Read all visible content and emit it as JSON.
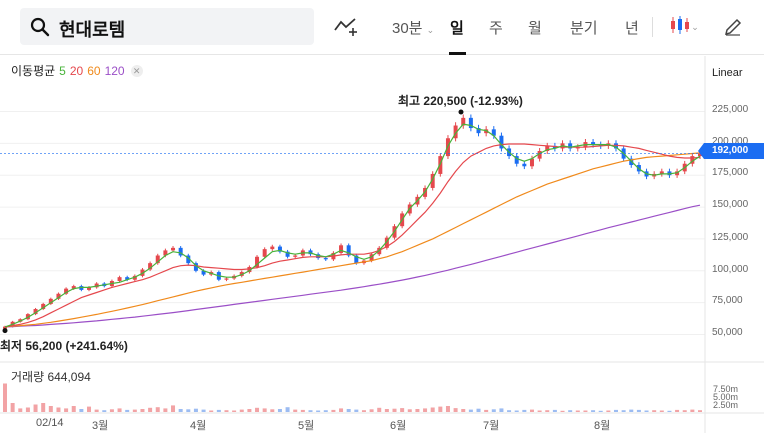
{
  "search": {
    "query": "현대로템"
  },
  "toolbar": {
    "timeframes": [
      "30분",
      "일",
      "주",
      "월",
      "분기",
      "년"
    ],
    "active_timeframe": "일",
    "icons": [
      "search-icon",
      "indicator-add-icon",
      "candle-type-icon",
      "pencil-icon"
    ]
  },
  "legend": {
    "title": "이동평균",
    "periods": [
      {
        "label": "5",
        "color": "#47b33a"
      },
      {
        "label": "20",
        "color": "#e5484d"
      },
      {
        "label": "60",
        "color": "#f08a1c"
      },
      {
        "label": "120",
        "color": "#9b4fc7"
      }
    ]
  },
  "scale_mode": "Linear",
  "current_price": "192,000",
  "annotations": {
    "high": "최고 220,500 (-12.93%)",
    "low": "최저 56,200 (+241.64%)"
  },
  "volume": {
    "title": "거래량 644,094",
    "ticks": [
      "7.50m",
      "5.00m",
      "2.50m"
    ]
  },
  "chart_data": {
    "type": "candlestick",
    "y_ticks": [
      "225,000",
      "200,000",
      "175,000",
      "150,000",
      "125,000",
      "100,000",
      "75,000",
      "50,000"
    ],
    "y_range": [
      30000,
      245000
    ],
    "x_labels": [
      "02/14",
      "3월",
      "4월",
      "5월",
      "6월",
      "7월",
      "8월"
    ],
    "up_color": "#e5484d",
    "down_color": "#1b6df2",
    "closes": [
      56200,
      60000,
      62000,
      66000,
      70000,
      74000,
      78000,
      82000,
      86000,
      88000,
      85000,
      87000,
      90000,
      88000,
      92000,
      95000,
      93000,
      96000,
      101000,
      106000,
      112000,
      116000,
      118000,
      112000,
      106000,
      100000,
      97000,
      99000,
      93000,
      94000,
      96000,
      99000,
      103000,
      111000,
      117000,
      119000,
      115000,
      111000,
      112000,
      116000,
      113000,
      110000,
      109000,
      114000,
      120000,
      112000,
      106000,
      108000,
      113000,
      118000,
      126000,
      135000,
      145000,
      152000,
      158000,
      165000,
      176000,
      190000,
      204000,
      214000,
      220000,
      212000,
      208000,
      211000,
      206000,
      196000,
      190000,
      184000,
      182000,
      188000,
      194000,
      198000,
      196000,
      200000,
      196000,
      197000,
      201000,
      199000,
      198000,
      200000,
      196000,
      188000,
      183000,
      178000,
      174000,
      176000,
      178000,
      175000,
      178000,
      184000,
      190000,
      192000
    ],
    "ma5": [
      56000,
      58000,
      60500,
      63500,
      67000,
      71000,
      75000,
      79000,
      83000,
      86000,
      87000,
      87000,
      88000,
      89000,
      90000,
      91000,
      93000,
      95000,
      98000,
      102000,
      107000,
      112000,
      115000,
      114000,
      110000,
      104000,
      100000,
      98000,
      96000,
      95000,
      95000,
      97000,
      100000,
      105000,
      110000,
      115000,
      116000,
      114000,
      113000,
      114000,
      114000,
      112000,
      111000,
      113000,
      116000,
      114000,
      111000,
      109000,
      111000,
      116000,
      123000,
      131000,
      140000,
      149000,
      155000,
      162000,
      172000,
      184000,
      198000,
      208000,
      215000,
      214000,
      211000,
      210000,
      206000,
      199000,
      193000,
      188000,
      186000,
      188000,
      192000,
      195000,
      196000,
      198000,
      197000,
      198000,
      199000,
      199000,
      199000,
      199000,
      197000,
      192000,
      186000,
      180000,
      176000,
      175000,
      176000,
      176000,
      177000,
      181000,
      186000,
      190000
    ],
    "ma20": [
      56000,
      57000,
      58000,
      59500,
      61500,
      64000,
      67000,
      70000,
      73000,
      76000,
      79000,
      81000,
      83000,
      85000,
      87000,
      88500,
      90000,
      91500,
      93000,
      95000,
      97500,
      100000,
      102500,
      104000,
      104500,
      104000,
      103000,
      102500,
      102000,
      101500,
      101000,
      101000,
      101500,
      102500,
      104000,
      106000,
      107500,
      108500,
      109500,
      110500,
      111000,
      111000,
      111000,
      111500,
      112500,
      113000,
      113000,
      113000,
      114000,
      116000,
      119000,
      123000,
      128000,
      134000,
      140000,
      146000,
      153000,
      161000,
      170000,
      178000,
      185000,
      190000,
      193000,
      196000,
      198000,
      199000,
      199500,
      199500,
      199500,
      199000,
      198500,
      198000,
      197500,
      197000,
      197000,
      197000,
      197000,
      197500,
      198000,
      198500,
      198500,
      198000,
      197000,
      196000,
      194500,
      193000,
      191500,
      190000,
      189000,
      188500,
      188500,
      189000
    ],
    "ma60": [
      56000,
      56500,
      57000,
      57500,
      58000,
      58800,
      59600,
      60500,
      61500,
      62500,
      63600,
      64700,
      65800,
      67000,
      68200,
      69500,
      70800,
      72100,
      73500,
      75000,
      76500,
      78000,
      79500,
      81000,
      82500,
      84000,
      85300,
      86600,
      87800,
      89000,
      90000,
      91000,
      92000,
      93000,
      94000,
      95000,
      96000,
      97000,
      98000,
      99000,
      100000,
      101000,
      102000,
      103000,
      104000,
      105000,
      106000,
      107000,
      108000,
      109500,
      111000,
      113000,
      115000,
      117500,
      120000,
      122500,
      125000,
      128000,
      131000,
      134000,
      137000,
      140000,
      143000,
      146000,
      149000,
      152000,
      155000,
      158000,
      160500,
      163000,
      165500,
      168000,
      170000,
      172000,
      174000,
      176000,
      178000,
      180000,
      181500,
      183000,
      184500,
      186000,
      187000,
      188000,
      189000,
      189500,
      190000,
      190500,
      191000,
      191500,
      192000,
      192500
    ],
    "ma120": [
      56000,
      56200,
      56500,
      56800,
      57100,
      57500,
      57900,
      58300,
      58700,
      59200,
      59700,
      60200,
      60700,
      61300,
      61900,
      62500,
      63100,
      63700,
      64400,
      65100,
      65800,
      66500,
      67200,
      68000,
      68800,
      69600,
      70400,
      71200,
      72000,
      72800,
      73600,
      74400,
      75200,
      76000,
      76800,
      77600,
      78400,
      79200,
      80000,
      80800,
      81600,
      82400,
      83200,
      84000,
      84800,
      85700,
      86600,
      87500,
      88500,
      89500,
      90500,
      91600,
      92700,
      93900,
      95100,
      96400,
      97700,
      99100,
      100500,
      102000,
      103500,
      105000,
      106600,
      108200,
      109800,
      111400,
      113000,
      114600,
      116200,
      117800,
      119400,
      121000,
      122600,
      124200,
      125800,
      127400,
      129000,
      130600,
      132200,
      133800,
      135300,
      136800,
      138300,
      139800,
      141300,
      142800,
      144300,
      145800,
      147300,
      148800,
      150300,
      151500
    ],
    "volumes": [
      9.5,
      3.0,
      1.2,
      1.5,
      2.5,
      3.0,
      2.0,
      1.5,
      1.2,
      2.0,
      1.0,
      1.8,
      0.8,
      0.6,
      0.9,
      1.2,
      0.7,
      0.8,
      1.0,
      1.4,
      1.6,
      1.2,
      2.2,
      1.0,
      0.9,
      1.1,
      0.8,
      0.5,
      0.7,
      0.6,
      0.5,
      0.8,
      1.0,
      1.4,
      1.2,
      0.9,
      1.0,
      1.6,
      0.8,
      0.7,
      0.6,
      0.5,
      0.6,
      0.7,
      1.2,
      1.0,
      0.8,
      0.6,
      0.9,
      1.4,
      1.0,
      1.1,
      1.3,
      0.9,
      1.0,
      1.2,
      1.5,
      1.8,
      2.0,
      1.3,
      1.0,
      0.8,
      1.1,
      0.7,
      0.9,
      1.2,
      0.6,
      0.5,
      0.7,
      0.8,
      0.5,
      0.6,
      0.7,
      0.4,
      0.6,
      0.5,
      0.5,
      0.6,
      0.4,
      0.5,
      0.7,
      0.6,
      0.8,
      0.7,
      0.5,
      0.6,
      0.5,
      0.4,
      0.7,
      0.6,
      0.8,
      0.6
    ]
  }
}
